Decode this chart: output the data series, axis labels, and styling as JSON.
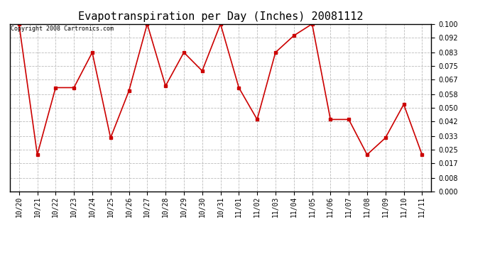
{
  "title": "Evapotranspiration per Day (Inches) 20081112",
  "copyright": "Copyright 2008 Cartronics.com",
  "labels": [
    "10/20",
    "10/21",
    "10/22",
    "10/23",
    "10/24",
    "10/25",
    "10/26",
    "10/27",
    "10/28",
    "10/29",
    "10/30",
    "10/31",
    "11/01",
    "11/02",
    "11/03",
    "11/04",
    "11/05",
    "11/06",
    "11/07",
    "11/08",
    "11/09",
    "11/10",
    "11/11"
  ],
  "values": [
    0.1,
    0.022,
    0.062,
    0.062,
    0.083,
    0.032,
    0.06,
    0.1,
    0.063,
    0.083,
    0.072,
    0.1,
    0.062,
    0.043,
    0.083,
    0.093,
    0.1,
    0.043,
    0.043,
    0.022,
    0.032,
    0.052,
    0.022
  ],
  "line_color": "#cc0000",
  "marker": "s",
  "marker_color": "#cc0000",
  "marker_size": 3,
  "bg_color": "#ffffff",
  "grid_color": "#bbbbbb",
  "ylim": [
    0.0,
    0.1
  ],
  "yticks": [
    0.0,
    0.008,
    0.017,
    0.025,
    0.033,
    0.042,
    0.05,
    0.058,
    0.067,
    0.075,
    0.083,
    0.092,
    0.1
  ],
  "title_fontsize": 11,
  "tick_fontsize": 7,
  "copyright_fontsize": 6,
  "fig_width": 6.9,
  "fig_height": 3.75,
  "dpi": 100
}
